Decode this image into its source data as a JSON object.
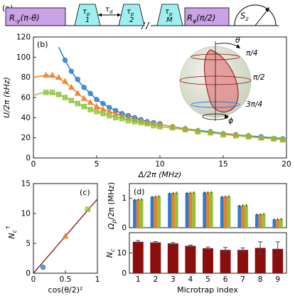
{
  "colors": {
    "blue": "#2a7dd1",
    "orange": "#ef7d22",
    "green": "#8fc23a",
    "darkred": "#8b0e0e",
    "pulse_purple": "#c9a3e6",
    "pulse_cyan": "#9ef0f0",
    "sphere": "#e2e8d6"
  },
  "panel_a": {
    "label": "(a)",
    "rot1": {
      "text": "R",
      "sub": "-y",
      "arg": "(π-θ)"
    },
    "tau_sym": "τ",
    "tau_sub": "p",
    "tau_d": {
      "text": "τ",
      "sub": "d"
    },
    "pulses": [
      "1",
      "2",
      "M"
    ],
    "rot2": {
      "text": "R",
      "sub": "φ",
      "arg": "(π/2)"
    },
    "meas": {
      "text": "S",
      "sub": "z"
    }
  },
  "panel_b": {
    "label": "(b)",
    "sphere_labels": {
      "theta": "θ",
      "phi": "ϕ",
      "lines": [
        "π/4",
        "π/2",
        "3π/4"
      ]
    }
  },
  "panel_c": {
    "label": "(c)"
  },
  "panel_d": {
    "label": "(d)"
  },
  "chart_data": [
    {
      "type": "scatter",
      "panel": "b",
      "xlabel": "Δ/2π (MHz)",
      "ylabel": "U/2π (kHz)",
      "xlim": [
        0,
        20
      ],
      "ylim": [
        0,
        120
      ],
      "xticks": [
        0,
        5,
        10,
        15,
        20
      ],
      "yticks": [
        0,
        20,
        40,
        60,
        80,
        100,
        120
      ],
      "series": [
        {
          "color": "blue",
          "x": [
            2.5,
            3.0,
            3.5,
            4.0,
            4.5,
            5.0,
            5.5,
            6.0,
            6.5,
            7.0,
            7.5,
            8.0,
            8.5,
            9.0,
            9.5,
            10.0,
            11.0,
            12.0,
            13.0,
            14.0,
            15.0,
            16.0,
            17.0,
            18.0,
            19.0,
            19.7
          ],
          "y": [
            97,
            86,
            78,
            70,
            64,
            58,
            54,
            50,
            47,
            44,
            42,
            40,
            38,
            36,
            35,
            34,
            31,
            29,
            27,
            26,
            24,
            23,
            22,
            21,
            19,
            19
          ]
        },
        {
          "color": "orange",
          "x": [
            1.0,
            1.5,
            2.0,
            2.5,
            3.0,
            3.5,
            4.0,
            4.5,
            5.0,
            5.5,
            6.0,
            6.5,
            7.0,
            7.5,
            8.0,
            8.5,
            9.0,
            9.5,
            10.0,
            11.0,
            12.0,
            13.0,
            14.0,
            15.0,
            16.0,
            17.0,
            18.0,
            19.0,
            19.7
          ],
          "y": [
            82,
            82,
            80,
            76,
            70,
            64,
            59,
            55,
            51,
            48,
            46,
            44,
            42,
            40,
            38,
            37,
            35,
            34,
            33,
            31,
            29,
            27,
            25,
            24,
            23,
            22,
            20,
            19,
            18
          ]
        },
        {
          "color": "green",
          "x": [
            1.0,
            1.5,
            2.0,
            2.5,
            3.0,
            3.5,
            4.0,
            4.5,
            5.0,
            5.5,
            6.0,
            6.5,
            7.0,
            7.5,
            8.0,
            8.5,
            9.0,
            9.5,
            10.0,
            11.0,
            12.0,
            13.0,
            14.0,
            15.0,
            16.0,
            17.0,
            18.0,
            19.0,
            19.7
          ],
          "y": [
            65,
            65,
            63,
            60,
            57,
            54,
            51,
            48,
            46,
            44,
            42,
            40,
            39,
            37,
            36,
            35,
            34,
            32,
            31,
            30,
            28,
            26,
            25,
            23,
            22,
            21,
            20,
            19,
            18
          ]
        }
      ],
      "fits": [
        {
          "color": "blue",
          "x": [
            2.0,
            2.5,
            3.0,
            3.5,
            4.0,
            5.0,
            6.0,
            7.0,
            8.0,
            9.0,
            10.0,
            12.0,
            14.0,
            16.0,
            18.0,
            20.0
          ],
          "y": [
            110,
            97,
            86,
            77,
            70,
            58,
            50,
            44,
            40,
            36,
            33,
            29,
            26,
            23,
            21,
            19
          ]
        },
        {
          "color": "orange",
          "x": [
            0,
            0.5,
            1.0,
            1.5,
            2.0,
            2.5,
            3.0,
            3.5,
            4.0,
            5.0,
            6.0,
            7.0,
            8.0,
            10.0,
            12.0,
            14.0,
            16.0,
            18.0,
            20.0
          ],
          "y": [
            80,
            81,
            82,
            81,
            79,
            75,
            70,
            64,
            59,
            51,
            46,
            42,
            38,
            33,
            29,
            25,
            23,
            20,
            18
          ]
        },
        {
          "color": "green",
          "x": [
            0,
            0.5,
            1.0,
            1.5,
            2.0,
            2.5,
            3.0,
            3.5,
            4.0,
            5.0,
            6.0,
            7.0,
            8.0,
            10.0,
            12.0,
            14.0,
            16.0,
            18.0,
            20.0
          ],
          "y": [
            62,
            64,
            65,
            64,
            63,
            60,
            57,
            54,
            51,
            46,
            42,
            39,
            36,
            31,
            28,
            25,
            22,
            20,
            18
          ]
        }
      ]
    },
    {
      "type": "scatter",
      "panel": "c",
      "xlabel": "cos(θ/2)²",
      "ylabel": "N",
      "ylabel_sub": "c",
      "ylabel_sup": "↑",
      "xlim": [
        0,
        1
      ],
      "ylim": [
        0,
        15
      ],
      "xticks": [
        0,
        0.5,
        1
      ],
      "yticks": [
        0,
        5,
        10,
        15
      ],
      "points": [
        {
          "x": 0.15,
          "y": 1.0,
          "color": "blue",
          "marker": "circle"
        },
        {
          "x": 0.5,
          "y": 6.2,
          "color": "orange",
          "marker": "triangle"
        },
        {
          "x": 0.85,
          "y": 10.7,
          "color": "green",
          "marker": "square"
        }
      ],
      "fit": {
        "x": [
          0,
          1
        ],
        "y": [
          0,
          12.4
        ]
      }
    },
    {
      "type": "bar",
      "panel": "d-top",
      "ylabel": "Ω",
      "ylabel_sub": "p",
      "ylabel_rest": "/2π (MHz)",
      "ylim": [
        0,
        1.5
      ],
      "yticks": [
        0,
        1
      ],
      "categories": [
        "1",
        "2",
        "3",
        "4",
        "5",
        "6",
        "7",
        "8",
        "9"
      ],
      "series": [
        {
          "color": "blue",
          "values": [
            0.95,
            1.05,
            1.17,
            1.18,
            1.2,
            1.05,
            0.75,
            0.45,
            0.28
          ]
        },
        {
          "color": "orange",
          "values": [
            0.96,
            1.06,
            1.18,
            1.19,
            1.2,
            1.06,
            0.76,
            0.46,
            0.29
          ]
        },
        {
          "color": "green",
          "values": [
            0.97,
            1.07,
            1.19,
            1.2,
            1.21,
            1.07,
            0.77,
            0.47,
            0.3
          ]
        }
      ]
    },
    {
      "type": "bar",
      "panel": "d-bottom",
      "xlabel": "Microtrap index",
      "ylabel": "N",
      "ylabel_sub": "c",
      "ylim": [
        0,
        20
      ],
      "yticks": [
        0,
        10
      ],
      "categories": [
        "1",
        "2",
        "3",
        "4",
        "5",
        "6",
        "7",
        "8",
        "9"
      ],
      "values": [
        15.5,
        15.2,
        14.7,
        13.5,
        12.3,
        11.5,
        11.5,
        12.5,
        12.0
      ],
      "errors": [
        0.6,
        0.4,
        0.5,
        0.4,
        0.6,
        1.2,
        1.0,
        3.0,
        3.5
      ]
    }
  ]
}
